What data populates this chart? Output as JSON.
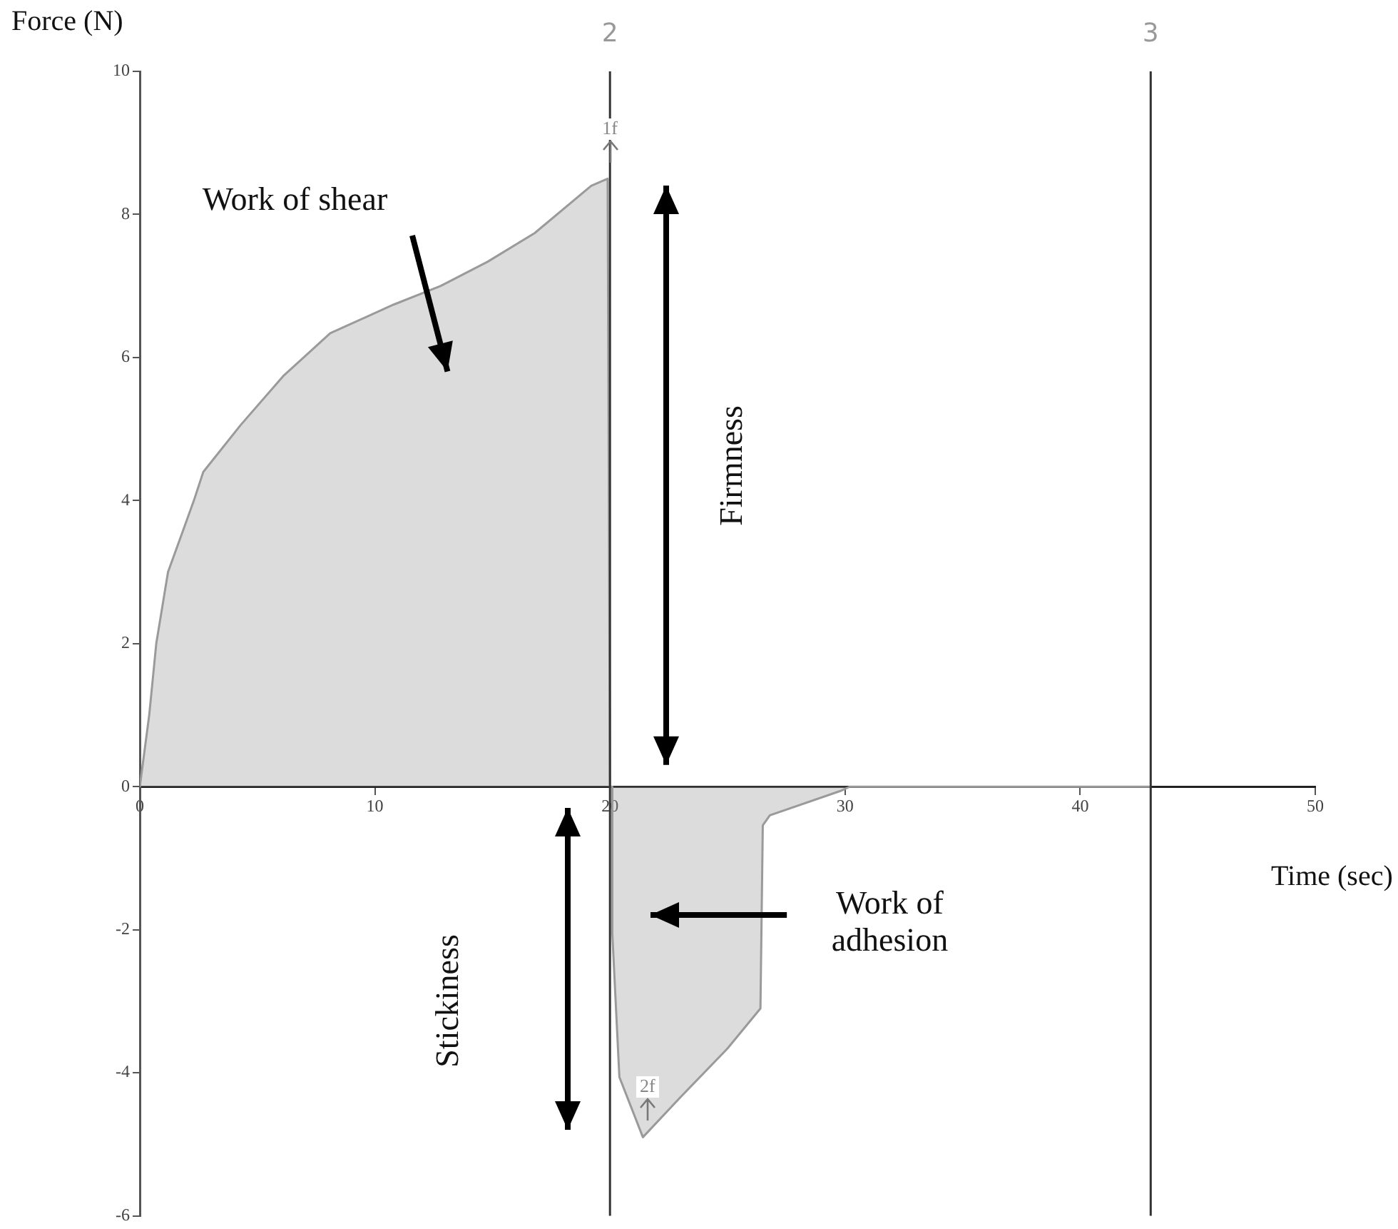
{
  "chart_data": {
    "type": "area",
    "xlabel": "Time (sec)",
    "ylabel": "Force (N)",
    "x": [
      0,
      0.4,
      0.7,
      1.2,
      2.3,
      2.7,
      4.3,
      6.1,
      8.1,
      10.8,
      12.8,
      14.8,
      16.8,
      19.2,
      19.9,
      20,
      20.1,
      20.1,
      20.4,
      21.4,
      23.0,
      25.0,
      26.4,
      26.5,
      26.8,
      29.8,
      30.2,
      43
    ],
    "series": [
      {
        "color": "#9a9a9a",
        "values": [
          0,
          1,
          2,
          3,
          4,
          4.4,
          5.06,
          5.74,
          6.34,
          6.74,
          7.0,
          7.34,
          7.74,
          8.4,
          8.5,
          0,
          0,
          -2.06,
          -4.06,
          -4.9,
          -4.34,
          -3.66,
          -3.1,
          -0.54,
          -0.4,
          -0.06,
          0,
          0
        ]
      }
    ],
    "xlim": [
      0,
      50
    ],
    "ylim": [
      -6,
      10
    ],
    "xticks": [
      0,
      10,
      20,
      30,
      40,
      50
    ],
    "yticks": [
      -6,
      -4,
      -2,
      0,
      2,
      4,
      6,
      8,
      10
    ],
    "grid": false,
    "legend": false,
    "marker": "none",
    "line_style": "solid",
    "ref_lines": [
      {
        "axis": "x",
        "value": 20,
        "color": "#333333"
      },
      {
        "axis": "x",
        "value": 43,
        "color": "#333333"
      }
    ],
    "annotations": [
      "Work of shear",
      "Firmness",
      "Stickiness",
      "Work of adhesion",
      "1f",
      "2f",
      "2",
      "3"
    ]
  }
}
